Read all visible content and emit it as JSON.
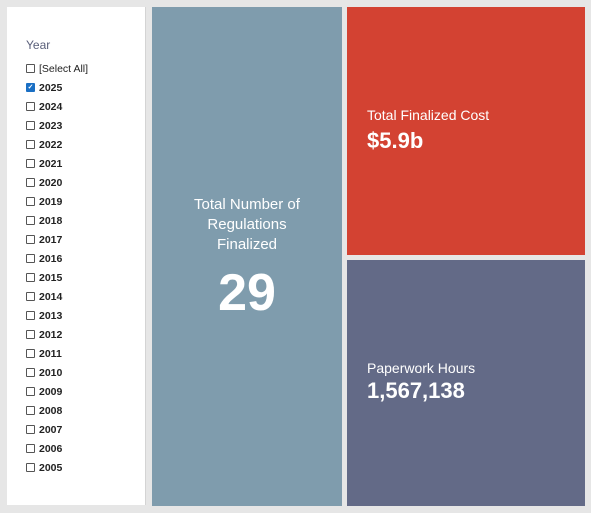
{
  "filter": {
    "title": "Year",
    "items": [
      {
        "label": "[Select All]",
        "checked": false
      },
      {
        "label": "2025",
        "checked": true
      },
      {
        "label": "2024",
        "checked": false
      },
      {
        "label": "2023",
        "checked": false
      },
      {
        "label": "2022",
        "checked": false
      },
      {
        "label": "2021",
        "checked": false
      },
      {
        "label": "2020",
        "checked": false
      },
      {
        "label": "2019",
        "checked": false
      },
      {
        "label": "2018",
        "checked": false
      },
      {
        "label": "2017",
        "checked": false
      },
      {
        "label": "2016",
        "checked": false
      },
      {
        "label": "2015",
        "checked": false
      },
      {
        "label": "2014",
        "checked": false
      },
      {
        "label": "2013",
        "checked": false
      },
      {
        "label": "2012",
        "checked": false
      },
      {
        "label": "2011",
        "checked": false
      },
      {
        "label": "2010",
        "checked": false
      },
      {
        "label": "2009",
        "checked": false
      },
      {
        "label": "2008",
        "checked": false
      },
      {
        "label": "2007",
        "checked": false
      },
      {
        "label": "2006",
        "checked": false
      },
      {
        "label": "2005",
        "checked": false
      }
    ]
  },
  "tiles": {
    "regulations": {
      "label": "Total Number of Regulations Finalized",
      "value": "29",
      "color": "#7f9cad"
    },
    "cost": {
      "label": "Total Finalized Cost",
      "value": "$5.9b",
      "color": "#d34232"
    },
    "hours": {
      "label": "Paperwork Hours",
      "value": "1,567,138",
      "color": "#636a87"
    }
  }
}
